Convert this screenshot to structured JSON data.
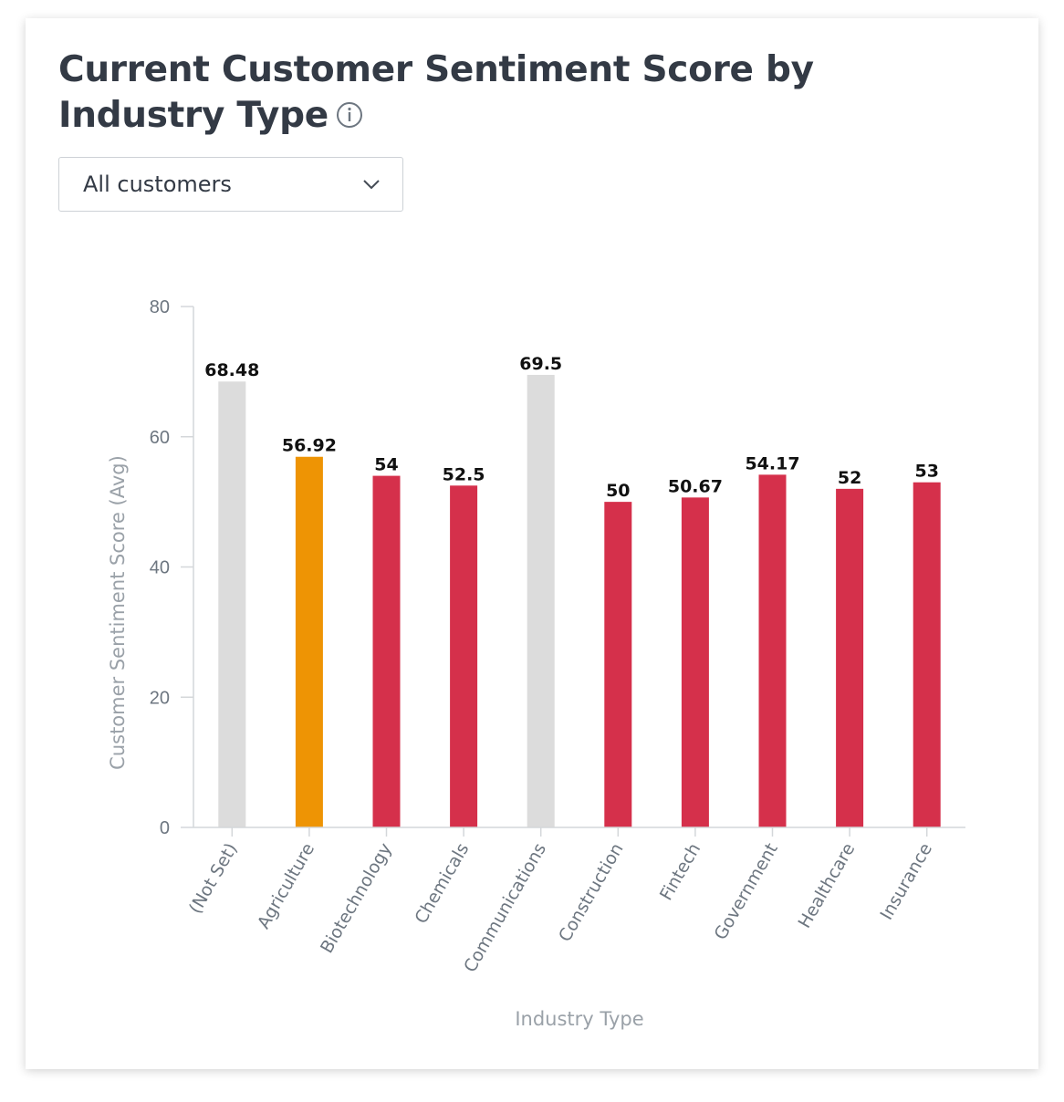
{
  "header": {
    "title": "Current Customer Sentiment Score by Industry Type",
    "info_icon": "info-icon"
  },
  "filter": {
    "selected": "All customers",
    "icon": "chevron-down-icon"
  },
  "colors": {
    "grey": "#dcdcdc",
    "orange": "#ee9404",
    "red": "#d5304b"
  },
  "chart_data": {
    "type": "bar",
    "title": "Current Customer Sentiment Score by Industry Type",
    "xlabel": "Industry Type",
    "ylabel": "Customer Sentiment Score (Avg)",
    "ylim": [
      0,
      80
    ],
    "yticks": [
      0,
      20,
      40,
      60,
      80
    ],
    "grid": false,
    "categories": [
      "(Not Set)",
      "Agriculture",
      "Biotechnology",
      "Chemicals",
      "Communications",
      "Construction",
      "Fintech",
      "Government",
      "Healthcare",
      "Insurance"
    ],
    "values": [
      68.48,
      56.92,
      54,
      52.5,
      69.5,
      50,
      50.67,
      54.17,
      52,
      53
    ],
    "labels": [
      "68.48",
      "56.92",
      "54",
      "52.5",
      "69.5",
      "50",
      "50.67",
      "54.17",
      "52",
      "53"
    ],
    "bar_colors": [
      "grey",
      "orange",
      "red",
      "red",
      "grey",
      "red",
      "red",
      "red",
      "red",
      "red"
    ]
  }
}
